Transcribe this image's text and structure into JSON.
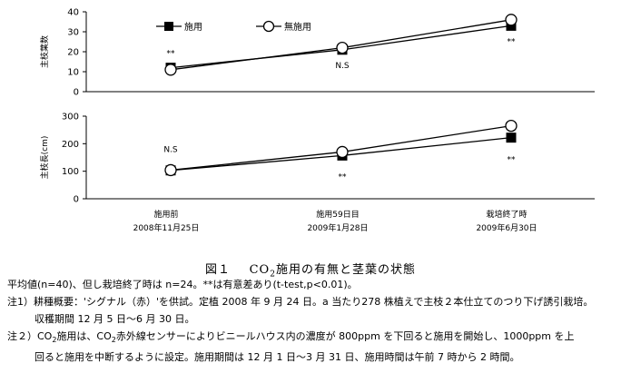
{
  "chart_data": [
    {
      "type": "line",
      "ylabel": "主枝葉数",
      "ylim": [
        0,
        40
      ],
      "yticks": [
        0,
        10,
        20,
        30,
        40
      ],
      "categories": [
        "施用前",
        "施用59日目",
        "栽培終了時"
      ],
      "dates": [
        "2008年11月25日",
        "2009年1月28日",
        "2009年6月30日"
      ],
      "series": [
        {
          "name": "施用",
          "marker": "filled-square",
          "values": [
            12,
            21,
            33
          ]
        },
        {
          "name": "無施用",
          "marker": "open-circle",
          "values": [
            11,
            22,
            36
          ]
        }
      ],
      "annotations": [
        "**",
        "N.S",
        "**"
      ]
    },
    {
      "type": "line",
      "ylabel": "主枝長(cm)",
      "ylim": [
        0,
        300
      ],
      "yticks": [
        0,
        100,
        200,
        300
      ],
      "categories": [
        "施用前",
        "施用59日目",
        "栽培終了時"
      ],
      "dates": [
        "2008年11月25日",
        "2009年1月28日",
        "2009年6月30日"
      ],
      "series": [
        {
          "name": "施用",
          "marker": "filled-square",
          "values": [
            103,
            157,
            222
          ]
        },
        {
          "name": "無施用",
          "marker": "open-circle",
          "values": [
            104,
            170,
            265
          ]
        }
      ],
      "annotations": [
        "N.S",
        "**",
        "**"
      ]
    }
  ],
  "legend": [
    {
      "name": "施用",
      "marker": "filled-square"
    },
    {
      "name": "無施用",
      "marker": "open-circle"
    }
  ],
  "figure": {
    "num": "図１",
    "title_pre": "CO",
    "title_sub": "2",
    "title_post": "施用の有無と茎葉の状態"
  },
  "notes": {
    "line1": "平均値(n=40)、但し栽培終了時は n=24。**は有意差あり(t-test,p<0.01)。",
    "line2": "注1）耕種概要：'シグナル（赤）'を供試。定植 2008 年 9 月 24 日。a 当たり278 株植えで主枝２本仕立てのつり下げ誘引栽培。",
    "line3": "収穫期間 12 月 5 日〜6 月 30 日。",
    "line4_pre": "注２）CO",
    "line4_sub1": "2",
    "line4_mid": "施用は、CO",
    "line4_sub2": "2",
    "line4_post": "赤外線センサーによりビニールハウス内の濃度が 800ppm を下回ると施用を開始し、1000ppm を上",
    "line5": "回ると施用を中断するように設定。施用期間は 12 月 1 日〜3 月 31 日、施用時間は午前 7 時から 2 時間。"
  }
}
